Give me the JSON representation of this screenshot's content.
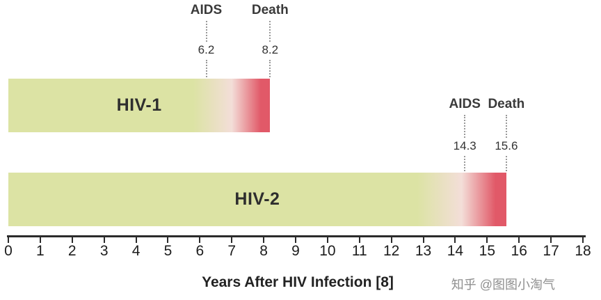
{
  "chart_data": {
    "type": "bar",
    "orientation": "horizontal",
    "title": "",
    "xlabel": "Years After HIV Infection [8]",
    "xlim": [
      0,
      18
    ],
    "xticks": [
      0,
      1,
      2,
      3,
      4,
      5,
      6,
      7,
      8,
      9,
      10,
      11,
      12,
      13,
      14,
      15,
      16,
      17,
      18
    ],
    "series": [
      {
        "name": "HIV-1",
        "start": 0,
        "end": 8.2,
        "fade_start": 5.8,
        "markers": [
          {
            "label": "AIDS",
            "value": 6.2,
            "value_label": "6.2"
          },
          {
            "label": "Death",
            "value": 8.2,
            "value_label": "8.2"
          }
        ]
      },
      {
        "name": "HIV-2",
        "start": 0,
        "end": 15.6,
        "fade_start": 12.8,
        "markers": [
          {
            "label": "AIDS",
            "value": 14.3,
            "value_label": "14.3"
          },
          {
            "label": "Death",
            "value": 15.6,
            "value_label": "15.6"
          }
        ]
      }
    ],
    "colors": {
      "bar_base": "#dce3a4",
      "bar_mid": "#f3ded8",
      "bar_red": "#e15968",
      "axis": "#2b2b2b",
      "marker_line": "#999999",
      "text": "#3a3a3a"
    },
    "grid": false,
    "legend_position": "none"
  },
  "watermark": "知乎 @图图小淘气"
}
